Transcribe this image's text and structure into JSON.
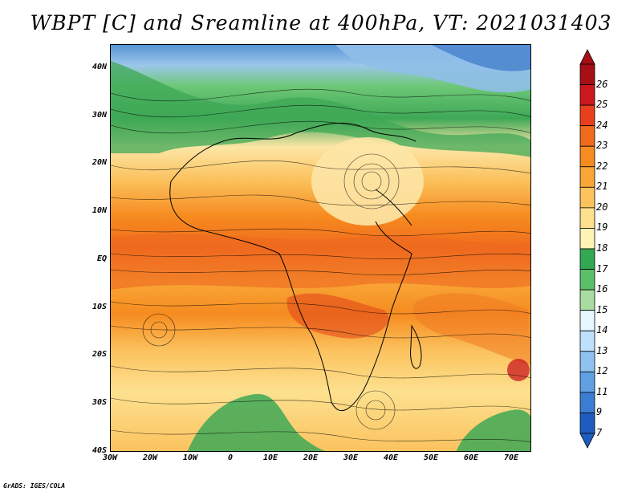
{
  "title": "WBPT [C] and Sreamline at 400hPa, VT: 2021031403",
  "credit": "GrADS: IGES/COLA",
  "map": {
    "lon_range": [
      -30,
      75
    ],
    "lat_range": [
      -40,
      45
    ],
    "lat_ticks": [
      {
        "value": 40,
        "label": "40N"
      },
      {
        "value": 30,
        "label": "30N"
      },
      {
        "value": 20,
        "label": "20N"
      },
      {
        "value": 10,
        "label": "10N"
      },
      {
        "value": 0,
        "label": "EQ"
      },
      {
        "value": -10,
        "label": "10S"
      },
      {
        "value": -20,
        "label": "20S"
      },
      {
        "value": -30,
        "label": "30S"
      },
      {
        "value": -40,
        "label": "40S"
      }
    ],
    "lon_ticks": [
      {
        "value": -30,
        "label": "30W"
      },
      {
        "value": -20,
        "label": "20W"
      },
      {
        "value": -10,
        "label": "10W"
      },
      {
        "value": 0,
        "label": "0"
      },
      {
        "value": 10,
        "label": "10E"
      },
      {
        "value": 20,
        "label": "20E"
      },
      {
        "value": 30,
        "label": "30E"
      },
      {
        "value": 40,
        "label": "40E"
      },
      {
        "value": 50,
        "label": "50E"
      },
      {
        "value": 60,
        "label": "60E"
      },
      {
        "value": 70,
        "label": "70E"
      }
    ]
  },
  "colorbar": {
    "labels": [
      "26",
      "25",
      "24",
      "23",
      "22",
      "21",
      "20",
      "19",
      "18",
      "17",
      "16",
      "15",
      "14",
      "13",
      "12",
      "11",
      "9",
      "7"
    ],
    "colors": [
      "#a50f15",
      "#cb181d",
      "#e8401f",
      "#f06a1c",
      "#f68b1f",
      "#f8a637",
      "#fbc25e",
      "#fde18f",
      "#fdf3b5",
      "#33a852",
      "#5bbf6a",
      "#a8dca0",
      "#e6f7ff",
      "#bfe0fa",
      "#90c2f0",
      "#5f9fe2",
      "#3b7dd3",
      "#1f5cc0"
    ]
  }
}
